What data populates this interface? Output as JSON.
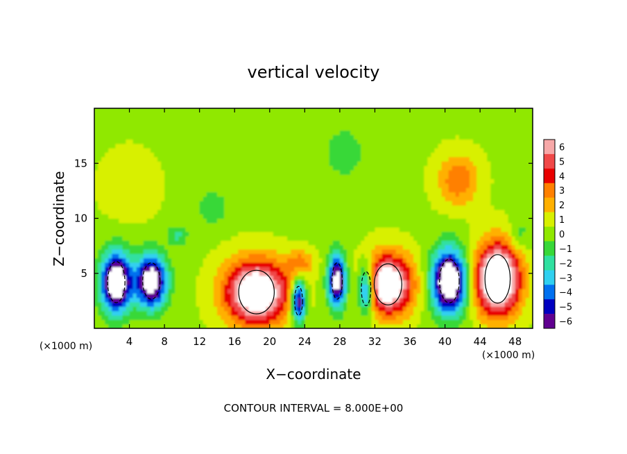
{
  "chart_data": {
    "type": "heatmap",
    "title": "vertical velocity",
    "xlabel": "X−coordinate",
    "ylabel": "Z−coordinate",
    "x_unit_label": "(×1000 m)",
    "z_unit_label": "(×1000 m)",
    "footer": "CONTOUR INTERVAL = 8.000E+00",
    "xlim": [
      0,
      50
    ],
    "ylim": [
      0,
      20
    ],
    "x_ticks": [
      4,
      8,
      12,
      16,
      20,
      24,
      28,
      32,
      36,
      40,
      44,
      48
    ],
    "y_ticks": [
      5,
      10,
      15
    ],
    "colorbar": {
      "levels": [
        6,
        5,
        4,
        3,
        2,
        1,
        0,
        -1,
        -2,
        -3,
        -4,
        -5,
        -6
      ],
      "tick_labels": [
        "6",
        "5",
        "4",
        "3",
        "2",
        "1",
        "0",
        "−1",
        "−2",
        "−3",
        "−4",
        "−5",
        "−6"
      ],
      "colors": [
        "#f7a8a8",
        "#f04848",
        "#e80000",
        "#ff8000",
        "#ffb000",
        "#d8f000",
        "#90e800",
        "#38d838",
        "#30e0a0",
        "#30d0f0",
        "#0070f0",
        "#0000c0",
        "#600090"
      ]
    },
    "background_value": 0.3,
    "features": [
      {
        "kind": "updraft",
        "x": 18.5,
        "z": 3.3,
        "rx": 4.5,
        "rz": 3.6,
        "value": 9.0
      },
      {
        "kind": "updraft",
        "x": 33.5,
        "z": 4.0,
        "rx": 3.5,
        "rz": 3.4,
        "value": 8.5
      },
      {
        "kind": "updraft",
        "x": 46.0,
        "z": 4.5,
        "rx": 3.2,
        "rz": 4.0,
        "value": 10.0
      },
      {
        "kind": "updraft",
        "x": 23.5,
        "z": 6.0,
        "rx": 2.0,
        "rz": 1.5,
        "value": 2.5
      },
      {
        "kind": "updraft",
        "x": 41.5,
        "z": 13.5,
        "rx": 3.0,
        "rz": 3.0,
        "value": 3.0
      },
      {
        "kind": "updraft",
        "x": 4.0,
        "z": 13.0,
        "rx": 4.0,
        "rz": 4.0,
        "value": 1.0
      },
      {
        "kind": "downdraft",
        "x": 2.5,
        "z": 4.2,
        "rx": 2.2,
        "rz": 3.4,
        "value": -9.0
      },
      {
        "kind": "downdraft",
        "x": 6.5,
        "z": 4.3,
        "rx": 2.2,
        "rz": 3.0,
        "value": -8.5
      },
      {
        "kind": "downdraft",
        "x": 23.3,
        "z": 2.5,
        "rx": 1.0,
        "rz": 2.4,
        "value": -7.5
      },
      {
        "kind": "downdraft",
        "x": 27.7,
        "z": 4.3,
        "rx": 1.3,
        "rz": 3.0,
        "value": -8.0
      },
      {
        "kind": "downdraft",
        "x": 31.0,
        "z": 3.6,
        "rx": 1.2,
        "rz": 2.8,
        "value": -7.0
      },
      {
        "kind": "downdraft",
        "x": 40.5,
        "z": 4.3,
        "rx": 2.5,
        "rz": 3.6,
        "value": -9.5
      },
      {
        "kind": "downdraft",
        "x": 9.5,
        "z": 8.5,
        "rx": 1.5,
        "rz": 1.2,
        "value": -2.0
      },
      {
        "kind": "downdraft",
        "x": 13.5,
        "z": 11.0,
        "rx": 2.0,
        "rz": 2.0,
        "value": -1.7
      },
      {
        "kind": "downdraft",
        "x": 28.5,
        "z": 16.0,
        "rx": 3.0,
        "rz": 3.0,
        "value": -1.5
      },
      {
        "kind": "downdraft",
        "x": 48.5,
        "z": 8.5,
        "rx": 1.5,
        "rz": 2.0,
        "value": -1.5
      }
    ]
  }
}
